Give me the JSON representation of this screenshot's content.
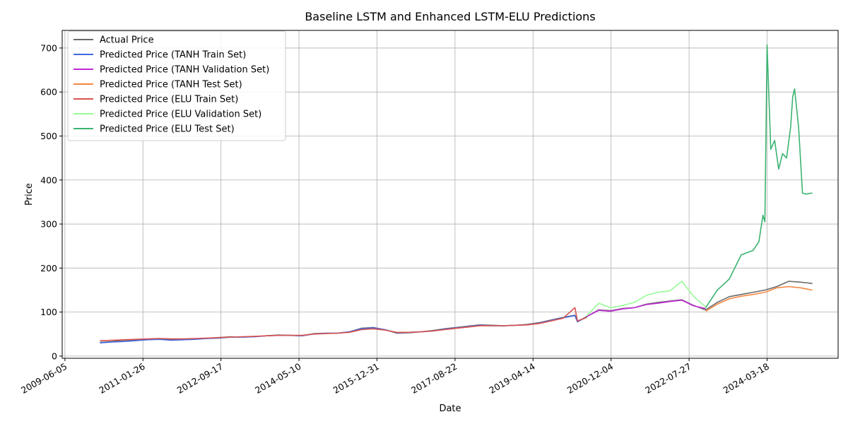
{
  "chart_data": {
    "type": "line",
    "title": "Baseline LSTM and Enhanced LSTM-ELU Predictions",
    "xlabel": "Date",
    "ylabel": "Price",
    "xlim": [
      "2009-05-15",
      "2025-09-15"
    ],
    "ylim": [
      -5,
      740
    ],
    "x_ticks": [
      "2009-06-05",
      "2011-01-26",
      "2012-09-17",
      "2014-05-10",
      "2015-12-31",
      "2017-08-22",
      "2019-04-14",
      "2020-12-04",
      "2022-07-27",
      "2024-03-18"
    ],
    "y_ticks": [
      0,
      100,
      200,
      300,
      400,
      500,
      600,
      700
    ],
    "grid": true,
    "legend_position": "top-left",
    "series": [
      {
        "name": "Actual Price",
        "color": "#696969",
        "x": [
          "2010-03-01",
          "2010-06-01",
          "2010-09-01",
          "2010-12-01",
          "2011-03-01",
          "2011-06-01",
          "2011-09-01",
          "2011-12-01",
          "2012-03-01",
          "2012-06-01",
          "2012-09-01",
          "2012-12-01",
          "2013-03-01",
          "2013-06-01",
          "2013-09-01",
          "2013-12-01",
          "2014-03-01",
          "2014-06-01",
          "2014-09-01",
          "2014-12-01",
          "2015-03-01",
          "2015-06-01",
          "2015-09-01",
          "2015-12-01",
          "2016-03-01",
          "2016-06-01",
          "2016-09-01",
          "2016-12-01",
          "2017-03-01",
          "2017-06-01",
          "2017-09-01",
          "2017-12-01",
          "2018-03-01",
          "2018-06-01",
          "2018-09-01",
          "2018-12-01",
          "2019-03-01",
          "2019-06-01",
          "2019-09-01",
          "2019-12-01",
          "2020-03-01",
          "2020-03-20",
          "2020-06-01",
          "2020-09-01",
          "2020-12-01",
          "2021-03-01",
          "2021-06-01",
          "2021-09-01",
          "2021-12-01",
          "2022-03-01",
          "2022-06-01",
          "2022-09-01",
          "2022-12-01",
          "2023-03-01",
          "2023-06-01",
          "2023-09-01",
          "2023-12-01",
          "2024-03-01",
          "2024-06-01",
          "2024-09-01",
          "2024-12-01",
          "2025-03-01"
        ],
        "y": [
          31,
          33,
          36,
          37,
          38,
          39,
          37,
          38,
          39,
          40,
          42,
          44,
          43,
          44,
          46,
          48,
          47,
          46,
          51,
          52,
          52,
          55,
          63,
          65,
          60,
          52,
          53,
          55,
          58,
          62,
          65,
          68,
          71,
          70,
          69,
          70,
          72,
          76,
          82,
          88,
          93,
          78,
          90,
          105,
          103,
          108,
          110,
          118,
          122,
          125,
          128,
          115,
          105,
          122,
          135,
          140,
          145,
          150,
          158,
          170,
          168,
          165
        ]
      },
      {
        "name": "Predicted Price (TANH Train Set)",
        "color": "#4169e1",
        "x": [
          "2010-03-01",
          "2010-06-01",
          "2010-09-01",
          "2010-12-01",
          "2011-03-01",
          "2011-06-01",
          "2011-09-01",
          "2011-12-01",
          "2012-03-01",
          "2012-06-01",
          "2012-09-01",
          "2012-12-01",
          "2013-03-01",
          "2013-06-01",
          "2013-09-01",
          "2013-12-01",
          "2014-03-01",
          "2014-06-01",
          "2014-09-01",
          "2014-12-01",
          "2015-03-01",
          "2015-06-01",
          "2015-09-01",
          "2015-12-01",
          "2016-03-01",
          "2016-06-01",
          "2016-09-01",
          "2016-12-01",
          "2017-03-01",
          "2017-06-01",
          "2017-09-01",
          "2017-12-01",
          "2018-03-01",
          "2018-06-01",
          "2018-09-01",
          "2018-12-01",
          "2019-03-01",
          "2019-06-01",
          "2019-09-01",
          "2019-12-01",
          "2020-03-01",
          "2020-03-20",
          "2020-06-01"
        ],
        "y": [
          30,
          32,
          33,
          35,
          37,
          38,
          36,
          37,
          38,
          40,
          41,
          43,
          43,
          44,
          46,
          47,
          47,
          46,
          50,
          52,
          52,
          55,
          62,
          64,
          60,
          53,
          54,
          55,
          57,
          61,
          64,
          67,
          70,
          69,
          69,
          70,
          71,
          75,
          81,
          87,
          92,
          78,
          89
        ]
      },
      {
        "name": "Predicted Price (TANH Validation Set)",
        "color": "#c026d3",
        "x": [
          "2020-06-01",
          "2020-09-01",
          "2020-12-01",
          "2021-03-01",
          "2021-06-01",
          "2021-09-01",
          "2021-12-01",
          "2022-03-01",
          "2022-06-01",
          "2022-09-01",
          "2022-12-01"
        ],
        "y": [
          90,
          104,
          102,
          107,
          110,
          117,
          120,
          124,
          127,
          114,
          108
        ]
      },
      {
        "name": "Predicted Price (TANH Test Set)",
        "color": "#f58742",
        "x": [
          "2022-12-01",
          "2023-03-01",
          "2023-06-01",
          "2023-09-01",
          "2023-12-01",
          "2024-03-01",
          "2024-06-01",
          "2024-09-01",
          "2024-12-01",
          "2025-03-01"
        ],
        "y": [
          102,
          118,
          130,
          136,
          140,
          145,
          155,
          158,
          155,
          150
        ]
      },
      {
        "name": "Predicted Price (ELU Train Set)",
        "color": "#d9534f",
        "x": [
          "2010-03-01",
          "2010-06-01",
          "2010-09-01",
          "2010-12-01",
          "2011-03-01",
          "2011-06-01",
          "2011-09-01",
          "2011-12-01",
          "2012-03-01",
          "2012-06-01",
          "2012-09-01",
          "2012-12-01",
          "2013-03-01",
          "2013-06-01",
          "2013-09-01",
          "2013-12-01",
          "2014-03-01",
          "2014-06-01",
          "2014-09-01",
          "2014-12-01",
          "2015-03-01",
          "2015-06-01",
          "2015-09-01",
          "2015-12-01",
          "2016-03-01",
          "2016-06-01",
          "2016-09-01",
          "2016-12-01",
          "2017-03-01",
          "2017-06-01",
          "2017-09-01",
          "2017-12-01",
          "2018-03-01",
          "2018-06-01",
          "2018-09-01",
          "2018-12-01",
          "2019-03-01",
          "2019-06-01",
          "2019-09-01",
          "2019-12-01",
          "2020-03-01",
          "2020-03-20",
          "2020-06-01"
        ],
        "y": [
          35,
          36,
          37,
          38,
          39,
          40,
          39,
          39,
          40,
          41,
          42,
          43,
          44,
          45,
          46,
          47,
          47,
          47,
          50,
          51,
          52,
          54,
          60,
          62,
          59,
          54,
          54,
          55,
          57,
          60,
          63,
          66,
          69,
          69,
          69,
          70,
          71,
          74,
          80,
          86,
          110,
          80,
          88
        ]
      },
      {
        "name": "Predicted Price (ELU Validation Set)",
        "color": "#98fb98",
        "x": [
          "2020-06-01",
          "2020-09-01",
          "2020-12-01",
          "2021-03-01",
          "2021-06-01",
          "2021-09-01",
          "2021-12-01",
          "2022-03-01",
          "2022-06-01",
          "2022-09-01",
          "2022-12-01"
        ],
        "y": [
          92,
          120,
          110,
          115,
          122,
          138,
          145,
          148,
          170,
          135,
          112
        ]
      },
      {
        "name": "Predicted Price (ELU Test Set)",
        "color": "#3cb371",
        "x": [
          "2022-12-01",
          "2023-03-01",
          "2023-06-01",
          "2023-09-01",
          "2023-12-01",
          "2024-01-15",
          "2024-02-15",
          "2024-03-01",
          "2024-03-18",
          "2024-04-15",
          "2024-05-15",
          "2024-06-15",
          "2024-07-15",
          "2024-08-15",
          "2024-09-15",
          "2024-10-01",
          "2024-10-15",
          "2024-11-15",
          "2024-12-15",
          "2025-01-15",
          "2025-02-15",
          "2025-03-01"
        ],
        "y": [
          110,
          150,
          175,
          230,
          240,
          260,
          320,
          305,
          707,
          470,
          490,
          425,
          460,
          450,
          520,
          590,
          607,
          520,
          370,
          368,
          370,
          370
        ]
      }
    ]
  }
}
